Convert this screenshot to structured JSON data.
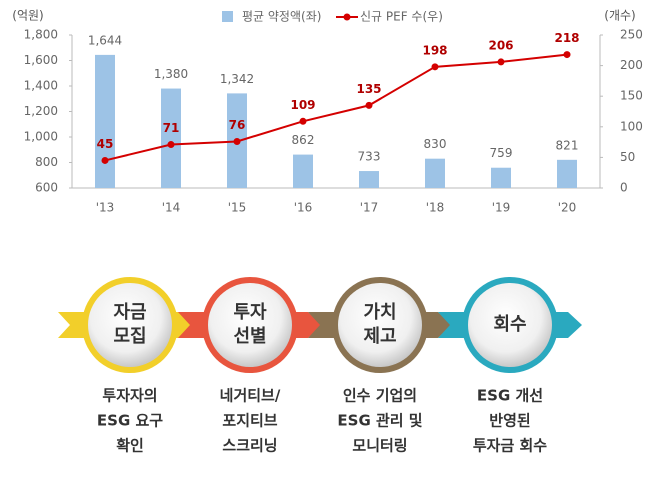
{
  "chart_data": {
    "type": "bar",
    "y_label": "(억원)",
    "y2_label": "(개수)",
    "legend": "top",
    "categories": [
      "'13",
      "'14",
      "'15",
      "'16",
      "'17",
      "'18",
      "'19",
      "'20"
    ],
    "series": [
      {
        "name": "평균 약정액(좌)",
        "color": "#9dc3e6",
        "values": [
          1644,
          1380,
          1342,
          862,
          733,
          830,
          759,
          821
        ],
        "value_labels": [
          "1,644",
          "1,380",
          "1,342",
          "862",
          "733",
          "830",
          "759",
          "821"
        ]
      },
      {
        "name": "신규 PEF 수(우)",
        "type": "line",
        "axis": "y2",
        "color": "#d40000",
        "values": [
          45,
          71,
          76,
          109,
          135,
          198,
          206,
          218
        ]
      }
    ],
    "ylim": [
      600,
      1800
    ],
    "yticks": [
      600,
      800,
      {
        "value": 1000,
        "label": "1,000"
      },
      {
        "value": 1200,
        "label": "1,200"
      },
      {
        "value": 1400,
        "label": "1,400"
      },
      {
        "value": 1600,
        "label": "1,600"
      },
      {
        "value": 1800,
        "label": "1,800"
      }
    ],
    "y2lim": [
      0,
      250
    ],
    "y2ticks": [
      0,
      50,
      100,
      150,
      200,
      250
    ],
    "grid": false
  },
  "process": {
    "steps": [
      {
        "label": [
          "자금",
          "모집"
        ],
        "color": "#f2cf2a",
        "description": [
          "투자자의",
          "ESG 요구",
          "확인"
        ]
      },
      {
        "label": [
          "투자",
          "선별"
        ],
        "color": "#e8553e",
        "description": [
          "네거티브/",
          "포지티브",
          "스크리닝"
        ]
      },
      {
        "label": [
          "가치",
          "제고"
        ],
        "color": "#8a7352",
        "description": [
          "인수 기업의",
          "ESG 관리 및",
          "모니터링"
        ]
      },
      {
        "label": [
          "회수"
        ],
        "color": "#2aa9bf",
        "description": [
          "ESG 개선",
          "반영된",
          "투자금 회수"
        ]
      }
    ]
  }
}
